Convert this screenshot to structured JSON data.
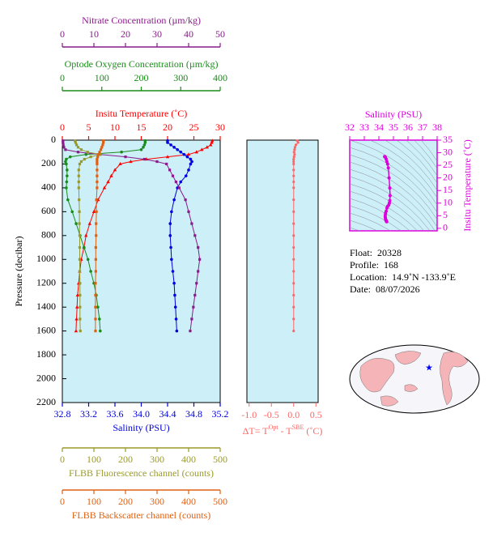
{
  "chart_data": [
    {
      "type": "profile",
      "ylabel": "Pressure (decibar)",
      "ylim": [
        0,
        2200
      ],
      "yticks": [
        0,
        200,
        400,
        600,
        800,
        1000,
        1200,
        1400,
        1600,
        1800,
        2000,
        2200
      ],
      "background": "#cdeff8",
      "pressure": [
        5,
        20,
        40,
        60,
        80,
        100,
        120,
        140,
        160,
        180,
        200,
        250,
        300,
        350,
        400,
        500,
        600,
        700,
        800,
        900,
        1000,
        1100,
        1200,
        1300,
        1400,
        1500,
        1600
      ],
      "series": [
        {
          "name": "Insitu Temperature (˚C)",
          "color": "#ff0000",
          "marker": "triangle",
          "xlim": [
            0,
            30
          ],
          "xticks": [
            0,
            5,
            10,
            15,
            20,
            25,
            30
          ],
          "values": [
            28.5,
            28.4,
            28.2,
            27.5,
            26.5,
            25.5,
            24,
            20,
            16,
            13,
            11,
            10,
            9.3,
            8.7,
            8.0,
            6.8,
            6.0,
            5.2,
            4.5,
            4.1,
            3.6,
            3.3,
            3.1,
            2.9,
            2.8,
            2.7,
            2.6
          ]
        },
        {
          "name": "Salinity (PSU)",
          "color": "#0000dd",
          "marker": "circle",
          "xlim": [
            32.8,
            35.2
          ],
          "xticks": [
            32.8,
            33.2,
            33.6,
            {
              "value": 34,
              "label": "34.0"
            },
            34.4,
            34.8,
            35.2
          ],
          "values": [
            34.4,
            34.4,
            34.45,
            34.5,
            34.55,
            34.6,
            34.65,
            34.7,
            34.75,
            34.77,
            34.75,
            34.72,
            34.68,
            34.6,
            34.55,
            34.5,
            34.46,
            34.44,
            34.44,
            34.45,
            34.46,
            34.48,
            34.5,
            34.51,
            34.52,
            34.53,
            34.54
          ]
        },
        {
          "name": "Optode Oxygen Concentration (µm/kg)",
          "color": "#1a8c1a",
          "marker": "circle",
          "xlim": [
            0,
            400
          ],
          "xticks": [
            0,
            100,
            200,
            300,
            400
          ],
          "values": [
            210,
            210,
            208,
            205,
            200,
            150,
            60,
            20,
            10,
            8,
            10,
            12,
            12,
            11,
            10,
            14,
            25,
            35,
            45,
            55,
            65,
            72,
            80,
            86,
            90,
            94,
            96
          ]
        },
        {
          "name": "Nitrate Concentration (µm/kg)",
          "color": "#8b1a8b",
          "marker": "square",
          "xlim": [
            0,
            50
          ],
          "xticks": [
            0,
            10,
            20,
            30,
            40,
            50
          ],
          "values": [
            0.2,
            0.2,
            0.3,
            0.5,
            1,
            5,
            12,
            20,
            26,
            30,
            33,
            34,
            35,
            36,
            37,
            39,
            40,
            41,
            42,
            43,
            43.5,
            43,
            42.5,
            42,
            41.5,
            41,
            40.5
          ]
        },
        {
          "name": "FLBB Fluorescence channel (counts)",
          "color": "#9a9a2a",
          "marker": "square",
          "xlim": [
            0,
            500
          ],
          "xticks": [
            0,
            100,
            200,
            300,
            400,
            500
          ],
          "values": [
            40,
            42,
            45,
            50,
            60,
            80,
            120,
            90,
            70,
            60,
            55,
            52,
            52,
            52,
            52,
            53,
            54,
            54,
            55,
            55,
            55,
            55,
            56,
            56,
            56,
            56,
            57
          ]
        },
        {
          "name": "FLBB Backscatter channel (counts)",
          "color": "#e06010",
          "marker": "square",
          "xlim": [
            0,
            500
          ],
          "xticks": [
            0,
            100,
            200,
            300,
            400,
            500
          ],
          "values": [
            130,
            130,
            128,
            125,
            122,
            118,
            115,
            112,
            110,
            110,
            110,
            110,
            110,
            110,
            110,
            108,
            108,
            107,
            107,
            106,
            106,
            106,
            105,
            105,
            105,
            105,
            105
          ]
        }
      ]
    },
    {
      "type": "delta",
      "xlabel": [
        "ΔT= T",
        "Opt",
        " - T",
        "SBE",
        " (˚C)"
      ],
      "color": "#ff6666",
      "background": "#cdeff8",
      "xlim": [
        -1.05,
        0.55
      ],
      "xticks": [
        {
          "value": -1,
          "label": "-1.0"
        },
        -0.5,
        {
          "value": 0,
          "label": "0.0"
        },
        0.5
      ],
      "ylim": [
        0,
        2200
      ],
      "values": [
        0.08,
        0.1,
        0.05,
        0.03,
        0.02,
        0.01,
        0.02,
        0.01,
        0,
        0,
        0,
        0,
        0,
        0,
        0,
        0,
        0,
        0,
        0,
        0,
        0,
        0,
        0,
        0,
        0,
        0,
        0
      ]
    },
    {
      "type": "ts",
      "xlabel": "Salinity (PSU)",
      "ylabel": "Insitu Temperature (˚C)",
      "color": "#dd00dd",
      "xlim": [
        32,
        38
      ],
      "xticks": [
        32,
        33,
        34,
        35,
        36,
        37,
        38
      ],
      "ylim": [
        -1,
        35
      ],
      "yticks": [
        0,
        5,
        10,
        15,
        20,
        25,
        30,
        35
      ]
    }
  ],
  "info": [
    {
      "label": "Float:",
      "value": "20328"
    },
    {
      "label": "Profile:",
      "value": "168"
    },
    {
      "label": "Location:",
      "value": "14.9˚N  -133.9˚E"
    },
    {
      "label": "Date:",
      "value": "08/07/2026"
    }
  ]
}
